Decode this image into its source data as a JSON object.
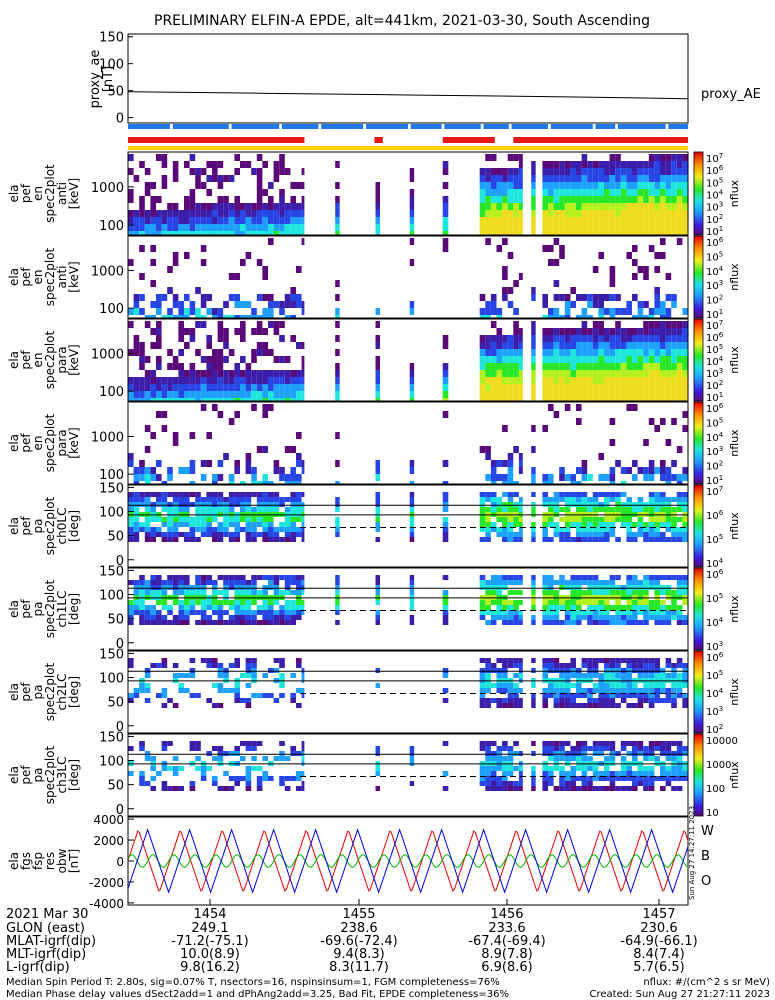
{
  "title": "PRELIMINARY ELFIN-A EPDE, alt=441km, 2021-03-30, South Ascending",
  "colors": {
    "bar_blue": "#1e78e6",
    "bar_red": "#e61919",
    "bar_yellow": "#ffd200",
    "trace_red": "#e60000",
    "trace_green": "#00b400",
    "trace_blue": "#0000e6"
  },
  "chart_data": [
    {
      "type": "line",
      "panel": "proxy_ae",
      "ylabel": [
        "proxy_ae",
        "[nT]"
      ],
      "yticks": [
        "150",
        "100",
        "50",
        "0"
      ],
      "ylim": [
        -10,
        155
      ],
      "series": [
        {
          "name": "proxy_AE",
          "x": [
            0,
            0.25,
            0.5,
            0.75,
            1.0
          ],
          "values": [
            48,
            45,
            42,
            39,
            35
          ]
        }
      ]
    },
    {
      "type": "heatmap",
      "panel": "spec2plot_anti",
      "ylabel": [
        "ela",
        "pef",
        "en",
        "spec2plot",
        "anti",
        "[keV]"
      ],
      "yticks": [
        "1000",
        "100"
      ],
      "cbar_label": "nflux",
      "cbar_ticks": [
        "10^7",
        "10^6",
        "10^5",
        "10^4",
        "10^3",
        "10^2",
        "10^1"
      ]
    },
    {
      "type": "heatmap",
      "panel": "spec2plot_anti_perp",
      "ylabel": [
        "ela",
        "pef",
        "en",
        "spec2plot",
        "anti",
        "[keV]"
      ],
      "yticks": [
        "1000",
        "100"
      ],
      "cbar_label": "nflux",
      "cbar_ticks": [
        "10^6",
        "10^5",
        "10^4",
        "10^3",
        "10^2",
        "10^1"
      ]
    },
    {
      "type": "heatmap",
      "panel": "spec2plot_para",
      "ylabel": [
        "ela",
        "pef",
        "en",
        "spec2plot",
        "para",
        "[keV]"
      ],
      "yticks": [
        "1000",
        "100"
      ],
      "cbar_label": "nflux",
      "cbar_ticks": [
        "10^7",
        "10^6",
        "10^5",
        "10^4",
        "10^3",
        "10^2",
        "10^1"
      ]
    },
    {
      "type": "heatmap",
      "panel": "spec2plot_para_perp",
      "ylabel": [
        "ela",
        "pef",
        "en",
        "spec2plot",
        "para",
        "[keV]"
      ],
      "yticks": [
        "1000",
        "100"
      ],
      "cbar_label": "nflux",
      "cbar_ticks": [
        "10^6",
        "10^5",
        "10^4",
        "10^3",
        "10^2",
        "10^1"
      ]
    },
    {
      "type": "heatmap",
      "panel": "ch0LC",
      "ylabel": [
        "ela",
        "pef",
        "pa",
        "spec2plot",
        "ch0LC",
        "[deg]"
      ],
      "yticks": [
        "150",
        "100",
        "50",
        "0"
      ],
      "cbar_label": "nflux",
      "cbar_ticks": [
        "10^7",
        "10^6",
        "10^5",
        "10^4"
      ]
    },
    {
      "type": "heatmap",
      "panel": "ch1LC",
      "ylabel": [
        "ela",
        "pef",
        "pa",
        "spec2plot",
        "ch1LC",
        "[deg]"
      ],
      "yticks": [
        "150",
        "100",
        "50",
        "0"
      ],
      "cbar_label": "nflux",
      "cbar_ticks": [
        "10^6",
        "10^5",
        "10^4",
        "10^3"
      ]
    },
    {
      "type": "heatmap",
      "panel": "ch2LC",
      "ylabel": [
        "ela",
        "pef",
        "pa",
        "spec2plot",
        "ch2LC",
        "[deg]"
      ],
      "yticks": [
        "150",
        "100",
        "50",
        "0"
      ],
      "cbar_label": "nflux",
      "cbar_ticks": [
        "10^6",
        "10^5",
        "10^4",
        "10^3",
        "10^2"
      ]
    },
    {
      "type": "heatmap",
      "panel": "ch3LC",
      "ylabel": [
        "ela",
        "pef",
        "pa",
        "spec2plot",
        "ch3LC",
        "[deg]"
      ],
      "yticks": [
        "150",
        "100",
        "50",
        "0"
      ],
      "cbar_label": "nflux",
      "cbar_ticks": [
        "10000",
        "1000",
        "100",
        "10"
      ]
    },
    {
      "type": "line",
      "panel": "fgs_obw",
      "ylabel": [
        "ela",
        "fgs",
        "fsp",
        "res",
        "obw",
        "[nT]"
      ],
      "yticks": [
        "4000",
        "2000",
        "0",
        "-2000",
        "-4000"
      ],
      "ylim": [
        -4200,
        4200
      ],
      "legend": [
        "W",
        "B",
        "O"
      ],
      "series": [
        {
          "name": "W",
          "color": "red",
          "amplitude": 3000,
          "period_min": 0.27,
          "phase": 1.6
        },
        {
          "name": "B",
          "color": "green",
          "amplitude": 600,
          "period_min": 0.135,
          "phase": 0.4
        },
        {
          "name": "O",
          "color": "blue",
          "amplitude": 3000,
          "period_min": 0.27,
          "phase": 0.2
        }
      ]
    }
  ],
  "xaxis": {
    "labels": [
      "2021 Mar 30",
      "GLON (east)",
      "MLAT-igrf(dip)",
      "MLT-igrf(dip)",
      "L-igrf(dip)"
    ],
    "ticks": [
      {
        "time": "1454",
        "glon": "249.1",
        "mlat": "-71.2(-75.1)",
        "mlt": "10.0(8.9)",
        "l": "9.8(16.2)"
      },
      {
        "time": "1455",
        "glon": "238.6",
        "mlat": "-69.6(-72.4)",
        "mlt": "9.4(8.3)",
        "l": "8.3(11.7)"
      },
      {
        "time": "1456",
        "glon": "233.6",
        "mlat": "-67.4(-69.4)",
        "mlt": "8.9(7.8)",
        "l": "6.9(8.6)"
      },
      {
        "time": "1457",
        "glon": "230.6",
        "mlat": "-64.9(-66.1)",
        "mlt": "8.4(7.4)",
        "l": "5.7(6.5)"
      }
    ]
  },
  "footer": {
    "line1": "Median Spin Period T: 2.80s, sig=0.07% T, nsectors=16, nspinsinsum=1, FGM completeness=76%",
    "line2": "Median Phase delay values dSect2add=1 and dPhAng2add=3.25, Bad Fit, EPDE completeness=36%",
    "units": "nflux: #/(cm^2 s sr MeV)",
    "created": "Created: Sun Aug 27 21:27:11 2023",
    "stamp": "Sun Aug 27 14:27:11 2023"
  }
}
